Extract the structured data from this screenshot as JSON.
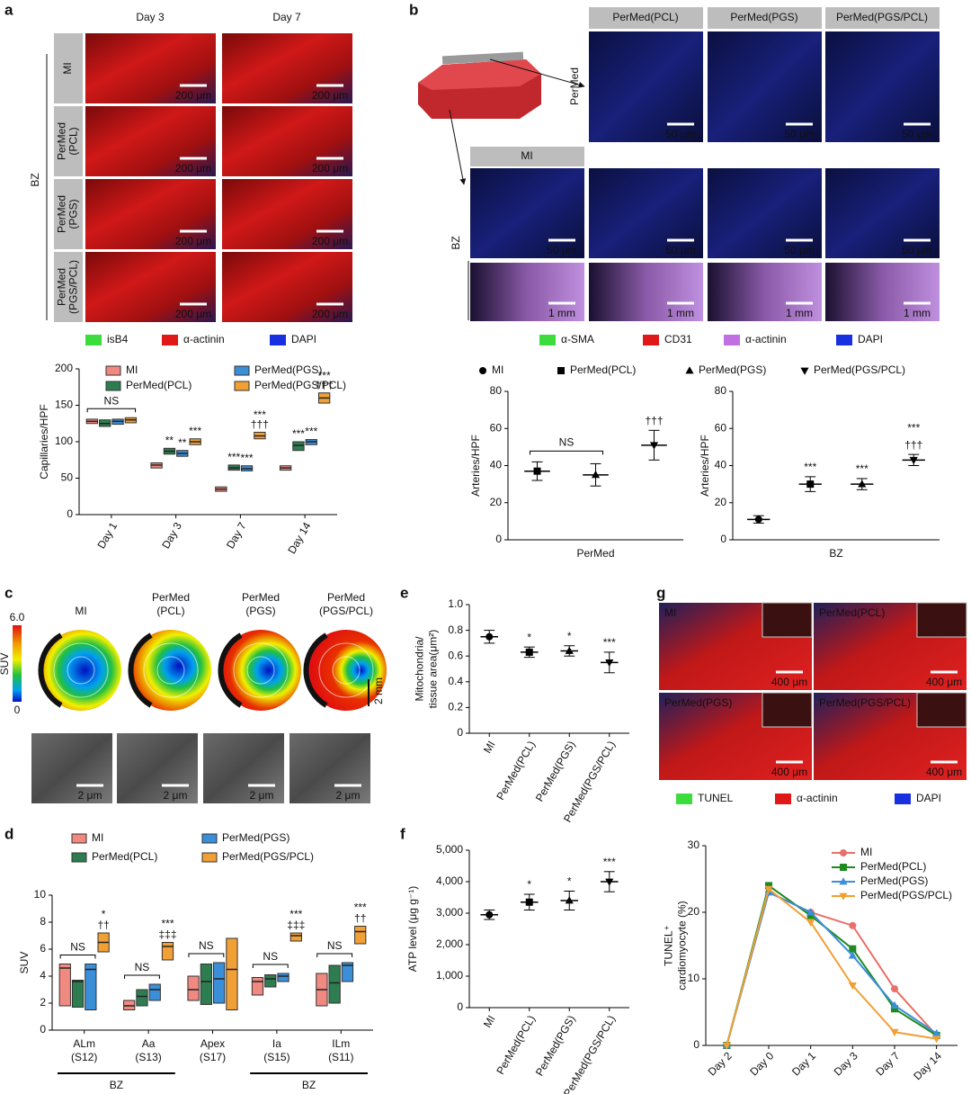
{
  "panel_letters": [
    "a",
    "b",
    "c",
    "d",
    "e",
    "f",
    "g"
  ],
  "panel_a": {
    "columns": [
      "Day 3",
      "Day 7"
    ],
    "rows": [
      [
        "MI"
      ],
      [
        "PerMed",
        "(PCL)"
      ],
      [
        "PerMed",
        "(PGS)"
      ],
      [
        "PerMed",
        "(PGS/PCL)"
      ]
    ],
    "region": "BZ",
    "scale": "200 μm",
    "legend": [
      "isB4",
      "α-actinin",
      "DAPI"
    ]
  },
  "panel_b": {
    "columns": [
      "PerMed(PCL)",
      "PerMed(PGS)",
      "PerMed(PGS/PCL)"
    ],
    "mi": "MI",
    "rows": [
      "PerMed",
      "BZ"
    ],
    "scale_high": "50 μm",
    "scale_low": "1 mm",
    "legend": [
      "α-SMA",
      "CD31",
      "α-actinin",
      "DAPI"
    ]
  },
  "panel_c": {
    "columns": [
      [
        "MI"
      ],
      [
        "PerMed",
        "(PCL)"
      ],
      [
        "PerMed",
        "(PGS)"
      ],
      [
        "PerMed",
        "(PGS/PCL)"
      ]
    ],
    "colorbar_label": "SUV",
    "colorbar_max": "6.0",
    "colorbar_min": "0",
    "scale": "2 mm",
    "tem_scale": "2 μm"
  },
  "panel_g": {
    "labels": [
      "MI",
      "PerMed(PCL)",
      "PerMed(PGS)",
      "PerMed(PGS/PCL)"
    ],
    "scale": "400 μm",
    "legend": [
      "TUNEL",
      "α-actinin",
      "DAPI"
    ]
  },
  "chart_data": [
    {
      "type": "box",
      "ylabel": "Capillaries/HPF",
      "categories": [
        "Day 1",
        "Day 3",
        "Day 7",
        "Day 14"
      ],
      "ylim": [
        0,
        200
      ],
      "yticks": [
        0,
        50,
        100,
        150,
        200
      ],
      "series": [
        {
          "name": "MI",
          "color": "#f08a80",
          "values": [
            128,
            68,
            35,
            64
          ],
          "q1": [
            125,
            64,
            32,
            61
          ],
          "q3": [
            131,
            71,
            38,
            67
          ]
        },
        {
          "name": "PerMed(PCL)",
          "color": "#2e7d50",
          "values": [
            125,
            87,
            64,
            95
          ],
          "q1": [
            121,
            83,
            61,
            88
          ],
          "q3": [
            130,
            91,
            68,
            100
          ],
          "sig": [
            null,
            "**",
            "***",
            "***"
          ]
        },
        {
          "name": "PerMed(PGS)",
          "color": "#3b8fd8",
          "values": [
            128,
            84,
            63,
            100
          ],
          "q1": [
            124,
            80,
            60,
            96
          ],
          "q3": [
            131,
            88,
            67,
            103
          ],
          "sig": [
            null,
            "**",
            "***",
            "***"
          ]
        },
        {
          "name": "PerMed(PGS/PCL)",
          "color": "#f0a035",
          "values": [
            130,
            100,
            108,
            160
          ],
          "q1": [
            126,
            96,
            104,
            153
          ],
          "q3": [
            133,
            104,
            113,
            167
          ],
          "sig": [
            null,
            "***",
            "***",
            "***"
          ],
          "sig2": [
            null,
            null,
            "†††",
            "†††"
          ]
        }
      ],
      "annotations": [
        {
          "label": "NS",
          "category": 0
        }
      ]
    },
    {
      "type": "dot",
      "ylabel": "Arteries/HPF",
      "xlabel": "PerMed",
      "ylim": [
        0,
        80
      ],
      "yticks": [
        0,
        20,
        40,
        60,
        80
      ],
      "values": [
        37,
        35,
        51
      ],
      "sd": [
        5,
        6,
        8
      ],
      "markers": [
        "square",
        "triangle",
        "triangle-down"
      ],
      "sig": [
        null,
        null,
        "†††"
      ],
      "annotations": [
        {
          "label": "NS",
          "from": 0,
          "to": 1
        }
      ],
      "legend": [
        {
          "name": "MI",
          "marker": "circle"
        },
        {
          "name": "PerMed(PCL)",
          "marker": "square"
        },
        {
          "name": "PerMed(PGS)",
          "marker": "triangle"
        },
        {
          "name": "PerMed(PGS/PCL)",
          "marker": "triangle-down"
        }
      ]
    },
    {
      "type": "dot",
      "ylabel": "Arteries/HPF",
      "xlabel": "BZ",
      "ylim": [
        0,
        80
      ],
      "yticks": [
        0,
        20,
        40,
        60,
        80
      ],
      "values": [
        11,
        30,
        30,
        43
      ],
      "sd": [
        2,
        4,
        3,
        3
      ],
      "markers": [
        "circle",
        "square",
        "triangle",
        "triangle-down"
      ],
      "sig": [
        null,
        "***",
        "***",
        "***"
      ],
      "sig2": [
        null,
        null,
        null,
        "†††"
      ]
    },
    {
      "type": "dot",
      "ylabel": [
        "Mitochondria/",
        "tissue area(μm²)"
      ],
      "categories": [
        "MI",
        "PerMed(PCL)",
        "PerMed(PGS)",
        "PerMed(PGS/PCL)"
      ],
      "ylim": [
        0,
        1
      ],
      "yticks": [
        0,
        0.2,
        0.4,
        0.6,
        0.8,
        {
          "value": 1,
          "label": "1.0"
        }
      ],
      "values": [
        0.75,
        0.63,
        0.64,
        0.55
      ],
      "sd": [
        0.05,
        0.04,
        0.04,
        0.08
      ],
      "markers": [
        "circle",
        "square",
        "triangle",
        "triangle-down"
      ],
      "sig": [
        null,
        "*",
        "*",
        "***"
      ]
    },
    {
      "type": "dot",
      "ylabel": "ATP level (μg g⁻¹)",
      "categories": [
        "MI",
        "PerMed(PCL)",
        "PerMed(PGS)",
        "PerMed(PGS/PCL)"
      ],
      "ylim": [
        0,
        5000
      ],
      "yticks": [
        0,
        {
          "value": 1000,
          "label": "1,000"
        },
        {
          "value": 2000,
          "label": "2,000"
        },
        {
          "value": 3000,
          "label": "3,000"
        },
        {
          "value": 4000,
          "label": "4,000"
        },
        {
          "value": 5000,
          "label": "5,000"
        }
      ],
      "values": [
        2950,
        3350,
        3400,
        4000
      ],
      "sd": [
        150,
        250,
        300,
        320
      ],
      "markers": [
        "circle",
        "square",
        "triangle",
        "triangle-down"
      ],
      "sig": [
        null,
        "*",
        "*",
        "***"
      ]
    },
    {
      "type": "box",
      "ylabel": "SUV",
      "categories": [
        "ALm",
        "Aa",
        "Apex",
        "Ia",
        "ILm"
      ],
      "segments": [
        "(S12)",
        "(S13)",
        "(S17)",
        "(S15)",
        "(S11)"
      ],
      "group_label": "BZ",
      "ylim": [
        0,
        10
      ],
      "yticks": [
        0,
        2,
        4,
        6,
        8,
        10
      ],
      "series": [
        {
          "name": "MI",
          "color": "#f08a80",
          "values": [
            4.6,
            1.8,
            3.0,
            3.6,
            3.0
          ],
          "q1": [
            1.8,
            1.5,
            2.2,
            2.6,
            1.8
          ],
          "q3": [
            4.9,
            2.2,
            4.0,
            3.9,
            4.2
          ]
        },
        {
          "name": "PerMed(PCL)",
          "color": "#2e7d50",
          "values": [
            3.6,
            2.5,
            3.6,
            3.8,
            3.5
          ],
          "q1": [
            1.7,
            1.8,
            1.9,
            3.2,
            2.0
          ],
          "q3": [
            3.7,
            3.0,
            4.9,
            4.1,
            4.8
          ]
        },
        {
          "name": "PerMed(PGS)",
          "color": "#3b8fd8",
          "values": [
            4.5,
            3.0,
            3.8,
            4.0,
            4.8
          ],
          "q1": [
            1.5,
            2.2,
            2.0,
            3.6,
            3.6
          ],
          "q3": [
            4.9,
            3.4,
            5.0,
            4.2,
            5.0
          ]
        },
        {
          "name": "PerMed(PGS/PCL)",
          "color": "#f0a035",
          "values": [
            6.5,
            6.2,
            4.5,
            7.0,
            7.3
          ],
          "q1": [
            5.8,
            5.2,
            1.5,
            6.6,
            6.4
          ],
          "q3": [
            7.2,
            6.5,
            6.8,
            7.2,
            7.7
          ],
          "sig": [
            "*",
            "***",
            null,
            "***",
            "***"
          ],
          "sig2": [
            "††",
            "‡‡‡",
            null,
            "‡‡‡",
            "††"
          ]
        }
      ],
      "annotations": [
        {
          "label": "NS",
          "category": 0
        },
        {
          "label": "NS",
          "category": 1
        },
        {
          "label": "NS",
          "category": 2
        },
        {
          "label": "NS",
          "category": 3
        },
        {
          "label": "NS",
          "category": 4
        }
      ]
    },
    {
      "type": "line",
      "ylabel": [
        "TUNEL⁺",
        "cardiomyocyte (%)"
      ],
      "categories": [
        "Day 2",
        "Day 0",
        "Day 1",
        "Day 3",
        "Day 7",
        "Day 14"
      ],
      "ylim": [
        0,
        30
      ],
      "yticks": [
        0,
        10,
        20,
        30
      ],
      "series": [
        {
          "name": "MI",
          "color": "#e8706a",
          "marker": "circle",
          "values": [
            0,
            23,
            20,
            18,
            8.5,
            1.5
          ]
        },
        {
          "name": "PerMed(PCL)",
          "color": "#1f8a1f",
          "marker": "square",
          "values": [
            0,
            24,
            19.5,
            14.5,
            5.5,
            1.5
          ]
        },
        {
          "name": "PerMed(PGS)",
          "color": "#3b8fd8",
          "marker": "triangle",
          "values": [
            0,
            23,
            20,
            13.5,
            6,
            1.8
          ]
        },
        {
          "name": "PerMed(PGS/PCL)",
          "color": "#f0a035",
          "marker": "triangle-down",
          "values": [
            0,
            23.5,
            18.5,
            9,
            2,
            1
          ]
        }
      ]
    }
  ]
}
